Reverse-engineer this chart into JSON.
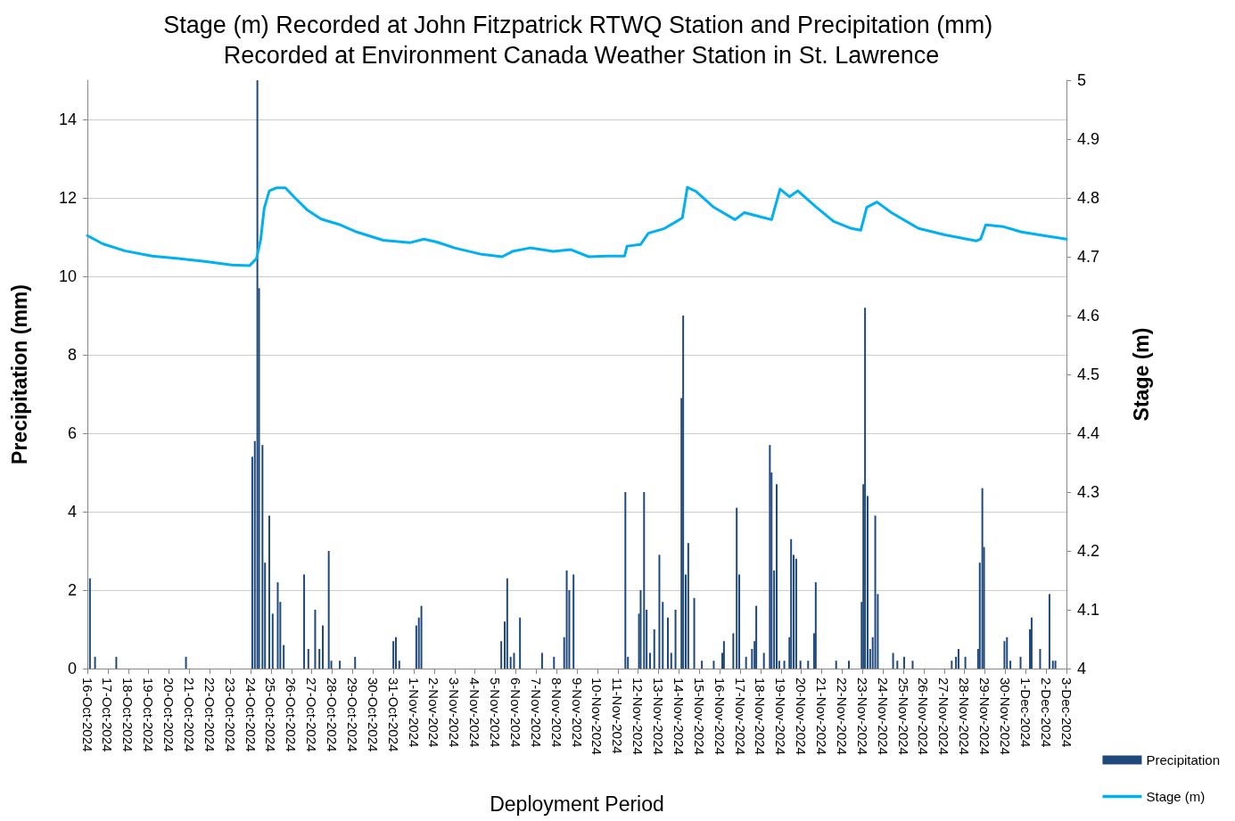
{
  "chart_data": {
    "type": "bar",
    "title": "Stage (m) Recorded at John Fitzpatrick RTWQ Station and Precipitation (mm) Recorded at Environment Canada Weather Station in St. Lawrence",
    "xlabel": "Deployment Period",
    "ylabel": "Precipitation (mm)",
    "y2label": "Stage (m)",
    "xlim": [
      "2024-10-16",
      "2024-12-03"
    ],
    "xticks": [
      {
        "value": "2024-10-16",
        "label": "16-Oct-2024"
      },
      {
        "value": "2024-10-17",
        "label": "17-Oct-2024"
      },
      {
        "value": "2024-10-18",
        "label": "18-Oct-2024"
      },
      {
        "value": "2024-10-19",
        "label": "19-Oct-2024"
      },
      {
        "value": "2024-10-20",
        "label": "20-Oct-2024"
      },
      {
        "value": "2024-10-21",
        "label": "21-Oct-2024"
      },
      {
        "value": "2024-10-22",
        "label": "22-Oct-2024"
      },
      {
        "value": "2024-10-23",
        "label": "23-Oct-2024"
      },
      {
        "value": "2024-10-24",
        "label": "24-Oct-2024"
      },
      {
        "value": "2024-10-25",
        "label": "25-Oct-2024"
      },
      {
        "value": "2024-10-26",
        "label": "26-Oct-2024"
      },
      {
        "value": "2024-10-27",
        "label": "27-Oct-2024"
      },
      {
        "value": "2024-10-28",
        "label": "28-Oct-2024"
      },
      {
        "value": "2024-10-29",
        "label": "29-Oct-2024"
      },
      {
        "value": "2024-10-30",
        "label": "30-Oct-2024"
      },
      {
        "value": "2024-10-31",
        "label": "31-Oct-2024"
      },
      {
        "value": "2024-11-01",
        "label": "1-Nov-2024"
      },
      {
        "value": "2024-11-02",
        "label": "2-Nov-2024"
      },
      {
        "value": "2024-11-03",
        "label": "3-Nov-2024"
      },
      {
        "value": "2024-11-04",
        "label": "4-Nov-2024"
      },
      {
        "value": "2024-11-05",
        "label": "5-Nov-2024"
      },
      {
        "value": "2024-11-06",
        "label": "6-Nov-2024"
      },
      {
        "value": "2024-11-07",
        "label": "7-Nov-2024"
      },
      {
        "value": "2024-11-08",
        "label": "8-Nov-2024"
      },
      {
        "value": "2024-11-09",
        "label": "9-Nov-2024"
      },
      {
        "value": "2024-11-10",
        "label": "10-Nov-2024"
      },
      {
        "value": "2024-11-11",
        "label": "11-Nov-2024"
      },
      {
        "value": "2024-11-12",
        "label": "12-Nov-2024"
      },
      {
        "value": "2024-11-13",
        "label": "13-Nov-2024"
      },
      {
        "value": "2024-11-14",
        "label": "14-Nov-2024"
      },
      {
        "value": "2024-11-15",
        "label": "15-Nov-2024"
      },
      {
        "value": "2024-11-16",
        "label": "16-Nov-2024"
      },
      {
        "value": "2024-11-17",
        "label": "17-Nov-2024"
      },
      {
        "value": "2024-11-18",
        "label": "18-Nov-2024"
      },
      {
        "value": "2024-11-19",
        "label": "19-Nov-2024"
      },
      {
        "value": "2024-11-20",
        "label": "20-Nov-2024"
      },
      {
        "value": "2024-11-21",
        "label": "21-Nov-2024"
      },
      {
        "value": "2024-11-22",
        "label": "22-Nov-2024"
      },
      {
        "value": "2024-11-23",
        "label": "23-Nov-2024"
      },
      {
        "value": "2024-11-24",
        "label": "24-Nov-2024"
      },
      {
        "value": "2024-11-25",
        "label": "25-Nov-2024"
      },
      {
        "value": "2024-11-26",
        "label": "26-Nov-2024"
      },
      {
        "value": "2024-11-27",
        "label": "27-Nov-2024"
      },
      {
        "value": "2024-11-28",
        "label": "28-Nov-2024"
      },
      {
        "value": "2024-11-29",
        "label": "29-Nov-2024"
      },
      {
        "value": "2024-11-30",
        "label": "30-Nov-2024"
      },
      {
        "value": "2024-12-01",
        "label": "1-Dec-2024"
      },
      {
        "value": "2024-12-02",
        "label": "2-Dec-2024"
      },
      {
        "value": "2024-12-03",
        "label": "3-Dec-2024"
      }
    ],
    "ylim": [
      0,
      15
    ],
    "yticks": [
      0,
      2,
      4,
      6,
      8,
      10,
      12,
      14
    ],
    "y2lim": [
      4,
      5
    ],
    "y2ticks": [
      4,
      4.1,
      4.2,
      4.3,
      4.4,
      4.5,
      4.6,
      4.7,
      4.8,
      4.9,
      5
    ],
    "grid": "y",
    "legend": "bottom right",
    "series": [
      {
        "name": "Precipitation",
        "color": "#1f497d",
        "x": [
          "2024-10-16T03:00",
          "2024-10-16T09:00",
          "2024-10-17T10:00",
          "2024-10-20T20:00",
          "2024-10-24T02:00",
          "2024-10-24T05:00",
          "2024-10-24T08:00",
          "2024-10-24T10:00",
          "2024-10-24T14:00",
          "2024-10-24T17:00",
          "2024-10-24T22:00",
          "2024-10-25T02:00",
          "2024-10-25T08:00",
          "2024-10-25T11:00",
          "2024-10-25T15:00",
          "2024-10-26T15:00",
          "2024-10-26T20:00",
          "2024-10-27T04:00",
          "2024-10-27T09:00",
          "2024-10-27T13:00",
          "2024-10-27T20:00",
          "2024-10-27T23:00",
          "2024-10-28T09:00",
          "2024-10-29T03:00",
          "2024-10-31T00:00",
          "2024-10-31T03:00",
          "2024-10-31T07:00",
          "2024-11-01T03:00",
          "2024-11-01T06:00",
          "2024-11-01T09:00",
          "2024-11-05T07:00",
          "2024-11-05T11:00",
          "2024-11-05T14:00",
          "2024-11-05T18:00",
          "2024-11-05T22:00",
          "2024-11-06T05:00",
          "2024-11-07T07:00",
          "2024-11-07T21:00",
          "2024-11-08T09:00",
          "2024-11-08T12:00",
          "2024-11-08T15:00",
          "2024-11-08T20:00",
          "2024-11-11T09:00",
          "2024-11-11T12:00",
          "2024-11-12T01:00",
          "2024-11-12T03:00",
          "2024-11-12T07:00",
          "2024-11-12T10:00",
          "2024-11-12T14:00",
          "2024-11-12T19:00",
          "2024-11-13T01:00",
          "2024-11-13T05:00",
          "2024-11-13T11:00",
          "2024-11-13T15:00",
          "2024-11-13T20:00",
          "2024-11-14T03:00",
          "2024-11-14T05:00",
          "2024-11-14T08:00",
          "2024-11-14T11:00",
          "2024-11-14T18:00",
          "2024-11-15T03:00",
          "2024-11-15T17:00",
          "2024-11-16T03:00",
          "2024-11-16T05:00",
          "2024-11-16T16:00",
          "2024-11-16T20:00",
          "2024-11-16T23:00",
          "2024-11-17T07:00",
          "2024-11-17T14:00",
          "2024-11-17T17:00",
          "2024-11-17T19:00",
          "2024-11-18T04:00",
          "2024-11-18T11:00",
          "2024-11-18T13:00",
          "2024-11-18T16:00",
          "2024-11-18T19:00",
          "2024-11-18T22:00",
          "2024-11-19T04:00",
          "2024-11-19T10:00",
          "2024-11-19T12:00",
          "2024-11-19T15:00",
          "2024-11-19T18:00",
          "2024-11-19T23:00",
          "2024-11-20T08:00",
          "2024-11-20T15:00",
          "2024-11-20T17:00",
          "2024-11-21T17:00",
          "2024-11-22T08:00",
          "2024-11-22T23:00",
          "2024-11-23T01:00",
          "2024-11-23T03:00",
          "2024-11-23T06:00",
          "2024-11-23T09:00",
          "2024-11-23T12:00",
          "2024-11-23T15:00",
          "2024-11-23T18:00",
          "2024-11-24T12:00",
          "2024-11-24T17:00",
          "2024-11-25T01:00",
          "2024-11-25T11:00",
          "2024-11-27T09:00",
          "2024-11-27T14:00",
          "2024-11-27T17:00",
          "2024-11-28T01:00",
          "2024-11-28T16:00",
          "2024-11-28T18:00",
          "2024-11-28T21:00",
          "2024-11-28T23:00",
          "2024-11-29T23:00",
          "2024-11-30T02:00",
          "2024-11-30T06:00",
          "2024-11-30T18:00",
          "2024-12-01T05:00",
          "2024-12-01T07:00",
          "2024-12-01T17:00",
          "2024-12-02T04:00",
          "2024-12-02T08:00",
          "2024-12-02T11:00"
        ],
        "values": [
          2.3,
          0.3,
          0.3,
          0.3,
          5.4,
          5.8,
          15,
          9.7,
          5.7,
          2.7,
          3.9,
          1.4,
          2.2,
          1.7,
          0.6,
          2.4,
          0.5,
          1.5,
          0.5,
          1.1,
          3.0,
          0.2,
          0.2,
          0.3,
          0.7,
          0.8,
          0.2,
          1.1,
          1.3,
          1.6,
          0.7,
          1.2,
          2.3,
          0.3,
          0.4,
          1.3,
          0.4,
          0.3,
          0.8,
          2.5,
          2.0,
          2.4,
          4.5,
          0.3,
          1.4,
          2.0,
          4.5,
          1.5,
          0.4,
          1.0,
          2.9,
          1.7,
          1.3,
          0.4,
          1.5,
          6.9,
          9.0,
          2.4,
          3.2,
          1.8,
          0.2,
          0.2,
          0.4,
          0.7,
          0.9,
          4.1,
          2.4,
          0.3,
          0.5,
          0.7,
          1.6,
          0.4,
          5.7,
          5.0,
          2.5,
          4.7,
          0.2,
          0.2,
          0.8,
          3.3,
          2.9,
          2.8,
          0.2,
          0.2,
          0.9,
          2.2,
          0.2,
          0.2,
          1.7,
          4.7,
          9.2,
          4.4,
          0.5,
          0.8,
          3.9,
          1.9,
          0.4,
          0.2,
          0.3,
          0.2,
          0.2,
          0.3,
          0.5,
          0.3,
          0.5,
          2.7,
          4.6,
          3.1,
          0.7,
          0.8,
          0.2,
          0.3,
          1.0,
          1.3,
          0.5,
          1.9,
          0.2,
          0.2
        ]
      },
      {
        "name": "Stage (m)",
        "type": "line",
        "axis": "y2",
        "color": "#00b0f0",
        "x": [
          "2024-10-16T00:00",
          "2024-10-16T18:00",
          "2024-10-17T20:00",
          "2024-10-19T04:00",
          "2024-10-20T11:00",
          "2024-10-21T18:00",
          "2024-10-23T02:00",
          "2024-10-23T23:00",
          "2024-10-24T07:00",
          "2024-10-24T12:00",
          "2024-10-24T16:00",
          "2024-10-24T22:00",
          "2024-10-25T06:00",
          "2024-10-25T17:00",
          "2024-10-26T03:00",
          "2024-10-26T19:00",
          "2024-10-27T11:00",
          "2024-10-28T08:00",
          "2024-10-29T05:00",
          "2024-10-30T12:00",
          "2024-10-31T20:00",
          "2024-11-01T12:00",
          "2024-11-02T03:00",
          "2024-11-03T00:00",
          "2024-11-04T08:00",
          "2024-11-05T08:00",
          "2024-11-05T20:00",
          "2024-11-06T17:00",
          "2024-11-07T20:00",
          "2024-11-08T17:00",
          "2024-11-09T14:00",
          "2024-11-10T11:00",
          "2024-11-11T08:00",
          "2024-11-11T11:00",
          "2024-11-12T03:00",
          "2024-11-12T12:00",
          "2024-11-13T07:00",
          "2024-11-14T04:00",
          "2024-11-14T10:00",
          "2024-11-14T20:00",
          "2024-11-15T17:00",
          "2024-11-16T18:00",
          "2024-11-17T05:00",
          "2024-11-18T02:00",
          "2024-11-18T13:00",
          "2024-11-18T23:00",
          "2024-11-19T10:00",
          "2024-11-19T20:00",
          "2024-11-20T17:00",
          "2024-11-21T14:00",
          "2024-11-22T11:00",
          "2024-11-22T22:00",
          "2024-11-23T05:00",
          "2024-11-23T17:00",
          "2024-11-24T10:00",
          "2024-11-25T18:00",
          "2024-11-27T01:00",
          "2024-11-28T14:00",
          "2024-11-28T19:00",
          "2024-11-29T01:00",
          "2024-11-29T22:00",
          "2024-11-30T19:00",
          "2024-12-01T21:00",
          "2024-12-03T00:00"
        ],
        "values": [
          4.736,
          4.722,
          4.71,
          4.701,
          4.697,
          4.692,
          4.686,
          4.685,
          4.697,
          4.73,
          4.782,
          4.812,
          4.817,
          4.817,
          4.802,
          4.779,
          4.764,
          4.755,
          4.742,
          4.728,
          4.724,
          4.73,
          4.725,
          4.715,
          4.704,
          4.7,
          4.709,
          4.715,
          4.709,
          4.712,
          4.7,
          4.701,
          4.701,
          4.718,
          4.721,
          4.74,
          4.748,
          4.766,
          4.818,
          4.811,
          4.784,
          4.763,
          4.775,
          4.767,
          4.763,
          4.815,
          4.802,
          4.812,
          4.785,
          4.76,
          4.748,
          4.745,
          4.784,
          4.793,
          4.775,
          4.748,
          4.737,
          4.727,
          4.73,
          4.754,
          4.751,
          4.742,
          4.736,
          4.73
        ]
      }
    ]
  }
}
